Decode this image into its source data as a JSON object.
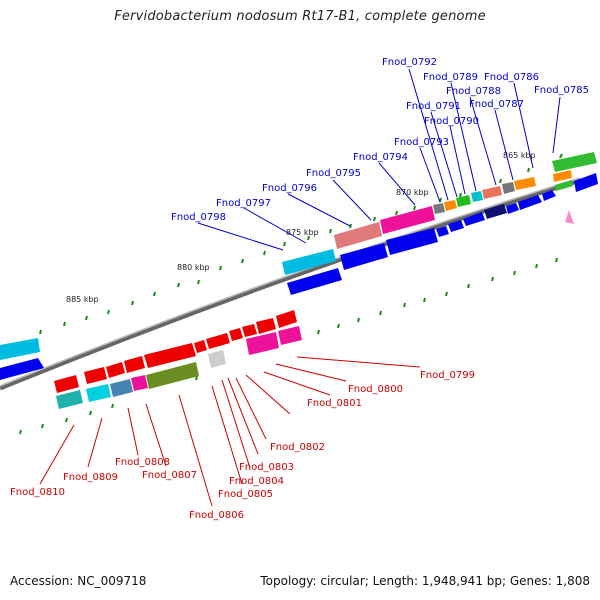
{
  "title": "Fervidobacterium nodosum Rt17-B1, complete genome",
  "footer": {
    "accession": "Accession: NC_009718",
    "summary": "Topology: circular; Length: 1,948,941 bp; Genes: 1,808"
  },
  "colors": {
    "upper_label": "#0000cc",
    "lower_label": "#cc0000",
    "backbone": "#888888",
    "tick": "#1a8a1a",
    "marker": "#ff88cc"
  },
  "scale_labels": [
    "865 kbp",
    "870 kbp",
    "875 kbp",
    "880 kbp",
    "885 kbp"
  ],
  "upper_genes": [
    "Fnod_0785",
    "Fnod_0786",
    "Fnod_0787",
    "Fnod_0788",
    "Fnod_0789",
    "Fnod_0790",
    "Fnod_0791",
    "Fnod_0792",
    "Fnod_0793",
    "Fnod_0794",
    "Fnod_0795",
    "Fnod_0796",
    "Fnod_0797",
    "Fnod_0798"
  ],
  "lower_genes": [
    "Fnod_0799",
    "Fnod_0800",
    "Fnod_0801",
    "Fnod_0802",
    "Fnod_0803",
    "Fnod_0804",
    "Fnod_0805",
    "Fnod_0806",
    "Fnod_0807",
    "Fnod_0808",
    "Fnod_0809",
    "Fnod_0810"
  ]
}
